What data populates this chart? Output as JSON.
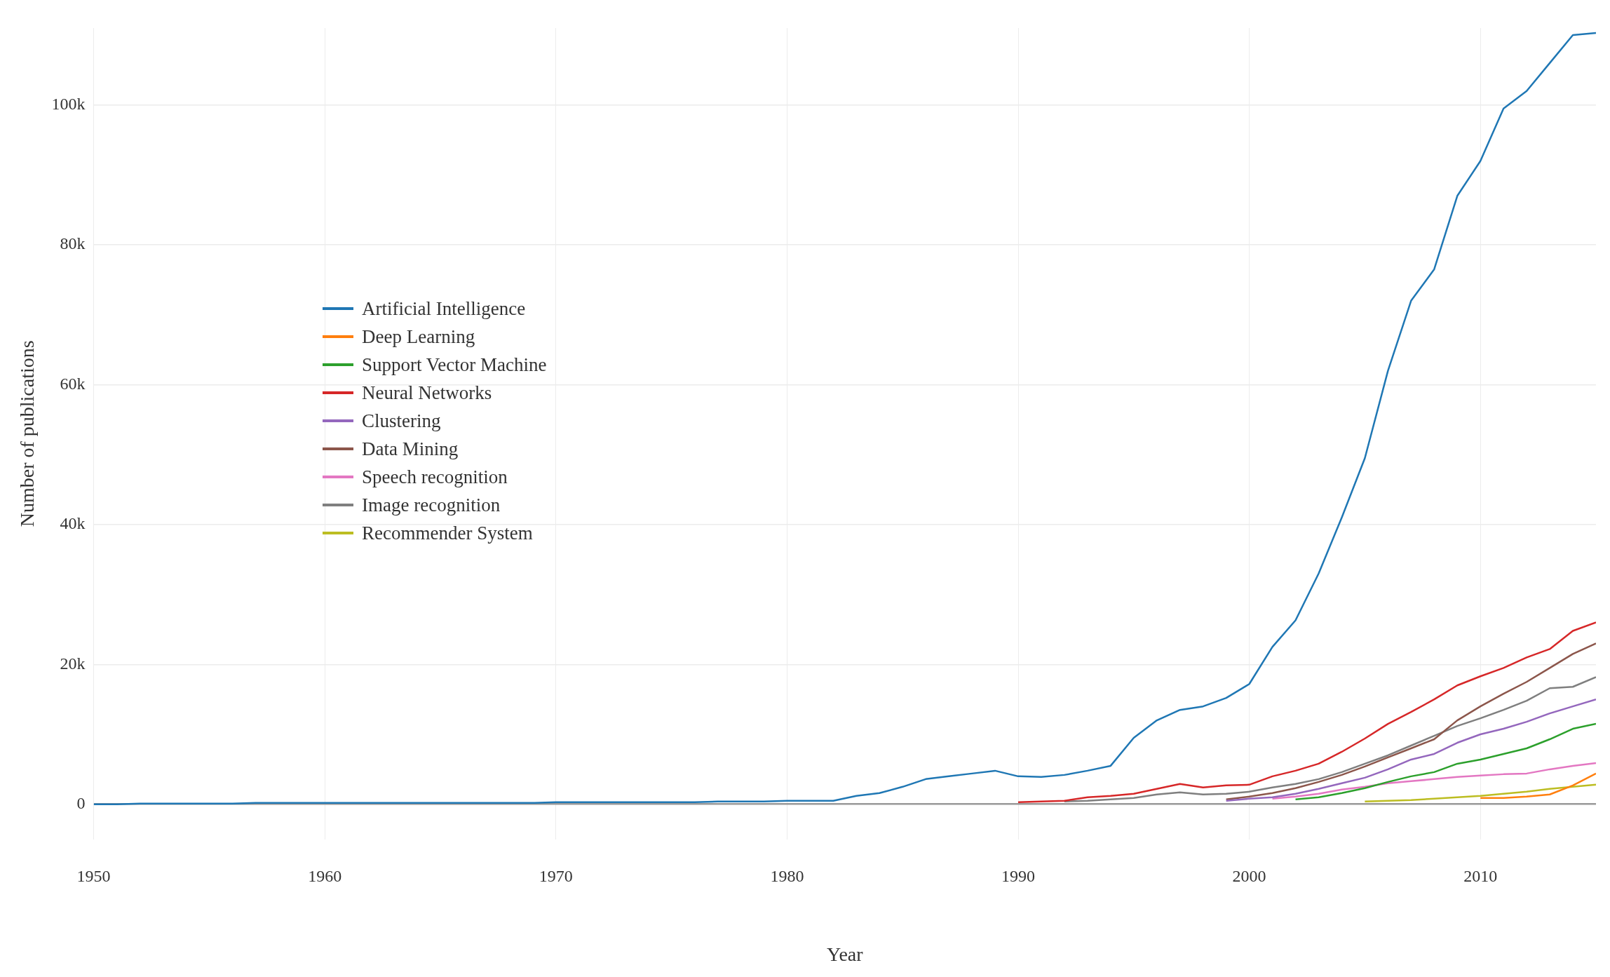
{
  "chart_data": {
    "type": "line",
    "xlabel": "Year",
    "ylabel": "Number of publications",
    "x": [
      1950,
      1951,
      1952,
      1953,
      1954,
      1955,
      1956,
      1957,
      1958,
      1959,
      1960,
      1961,
      1962,
      1963,
      1964,
      1965,
      1966,
      1967,
      1968,
      1969,
      1970,
      1971,
      1972,
      1973,
      1974,
      1975,
      1976,
      1977,
      1978,
      1979,
      1980,
      1981,
      1982,
      1983,
      1984,
      1985,
      1986,
      1987,
      1988,
      1989,
      1990,
      1991,
      1992,
      1993,
      1994,
      1995,
      1996,
      1997,
      1998,
      1999,
      2000,
      2001,
      2002,
      2003,
      2004,
      2005,
      2006,
      2007,
      2008,
      2009,
      2010,
      2011,
      2012,
      2013,
      2014,
      2015
    ],
    "series": [
      {
        "name": "Artificial Intelligence",
        "color": "#1f77b4",
        "values": [
          0,
          0,
          100,
          100,
          100,
          100,
          100,
          200,
          200,
          200,
          200,
          200,
          200,
          200,
          200,
          200,
          200,
          200,
          200,
          200,
          300,
          300,
          300,
          300,
          300,
          300,
          300,
          400,
          400,
          400,
          500,
          500,
          500,
          1200,
          1600,
          2500,
          3600,
          4000,
          4400,
          4800,
          4000,
          3900,
          4200,
          4800,
          5500,
          9500,
          12000,
          13500,
          14000,
          15200,
          17200,
          22500,
          26300,
          33000,
          41000,
          49500,
          62000,
          72000,
          76500,
          87000,
          92000,
          99500,
          102000,
          106000,
          110000,
          110300
        ]
      },
      {
        "name": "Deep Learning",
        "color": "#ff7f0e",
        "x": [
          2010,
          2011,
          2012,
          2013,
          2014,
          2015
        ],
        "values": [
          900,
          900,
          1100,
          1400,
          2700,
          4400
        ]
      },
      {
        "name": "Support Vector Machine",
        "color": "#2ca02c",
        "x": [
          2002,
          2003,
          2004,
          2005,
          2006,
          2007,
          2008,
          2009,
          2010,
          2011,
          2012,
          2013,
          2014,
          2015
        ],
        "values": [
          700,
          1000,
          1600,
          2300,
          3200,
          4000,
          4600,
          5800,
          6400,
          7200,
          8000,
          9300,
          10800,
          11500
        ]
      },
      {
        "name": "Neural Networks",
        "color": "#d62728",
        "x": [
          1990,
          1991,
          1992,
          1993,
          1994,
          1995,
          1996,
          1997,
          1998,
          1999,
          2000,
          2001,
          2002,
          2003,
          2004,
          2005,
          2006,
          2007,
          2008,
          2009,
          2010,
          2011,
          2012,
          2013,
          2014,
          2015
        ],
        "values": [
          300,
          400,
          500,
          1000,
          1200,
          1500,
          2200,
          2900,
          2400,
          2700,
          2800,
          4000,
          4800,
          5800,
          7500,
          9400,
          11500,
          13200,
          15000,
          17000,
          18300,
          19500,
          21000,
          22200,
          24800,
          26000
        ]
      },
      {
        "name": "Clustering",
        "color": "#9467bd",
        "x": [
          1999,
          2000,
          2001,
          2002,
          2003,
          2004,
          2005,
          2006,
          2007,
          2008,
          2009,
          2010,
          2011,
          2012,
          2013,
          2014,
          2015
        ],
        "values": [
          500,
          800,
          1000,
          1500,
          2200,
          3000,
          3800,
          5000,
          6400,
          7200,
          8800,
          10000,
          10800,
          11800,
          13000,
          14000,
          15000
        ]
      },
      {
        "name": "Data Mining",
        "color": "#8c564b",
        "x": [
          1999,
          2000,
          2001,
          2002,
          2003,
          2004,
          2005,
          2006,
          2007,
          2008,
          2009,
          2010,
          2011,
          2012,
          2013,
          2014,
          2015
        ],
        "values": [
          700,
          1100,
          1600,
          2300,
          3200,
          4200,
          5400,
          6700,
          8000,
          9300,
          12000,
          14000,
          15800,
          17500,
          19500,
          21500,
          23000
        ]
      },
      {
        "name": "Speech recognition",
        "color": "#e377c2",
        "x": [
          2001,
          2002,
          2003,
          2004,
          2005,
          2006,
          2007,
          2008,
          2009,
          2010,
          2011,
          2012,
          2013,
          2014,
          2015
        ],
        "values": [
          800,
          1100,
          1500,
          2100,
          2500,
          3000,
          3300,
          3600,
          3900,
          4100,
          4300,
          4400,
          5000,
          5500,
          5900
        ]
      },
      {
        "name": "Image recognition",
        "color": "#7f7f7f",
        "x": [
          1992,
          1993,
          1994,
          1995,
          1996,
          1997,
          1998,
          1999,
          2000,
          2001,
          2002,
          2003,
          2004,
          2005,
          2006,
          2007,
          2008,
          2009,
          2010,
          2011,
          2012,
          2013,
          2014,
          2015
        ],
        "values": [
          400,
          500,
          700,
          900,
          1400,
          1700,
          1400,
          1500,
          1800,
          2400,
          2900,
          3600,
          4600,
          5800,
          7000,
          8400,
          9800,
          11200,
          12300,
          13500,
          14800,
          16600,
          16800,
          18200
        ]
      },
      {
        "name": "Recommender System",
        "color": "#bcbd22",
        "x": [
          2005,
          2006,
          2007,
          2008,
          2009,
          2010,
          2011,
          2012,
          2013,
          2014,
          2015
        ],
        "values": [
          400,
          500,
          600,
          800,
          1000,
          1200,
          1500,
          1800,
          2200,
          2500,
          2800
        ]
      }
    ],
    "xlim": [
      1950,
      2015
    ],
    "xticks": [
      1950,
      1960,
      1970,
      1980,
      1990,
      2000,
      2010
    ],
    "ylim": [
      -5000,
      111000
    ],
    "yticks": [
      0,
      {
        "value": 20000,
        "label": "20k"
      },
      {
        "value": 40000,
        "label": "40k"
      },
      {
        "value": 60000,
        "label": "60k"
      },
      {
        "value": 80000,
        "label": "80k"
      },
      {
        "value": 100000,
        "label": "100k"
      }
    ],
    "grid": true,
    "legend": "top left",
    "marker": "none",
    "line_style": "solid"
  }
}
